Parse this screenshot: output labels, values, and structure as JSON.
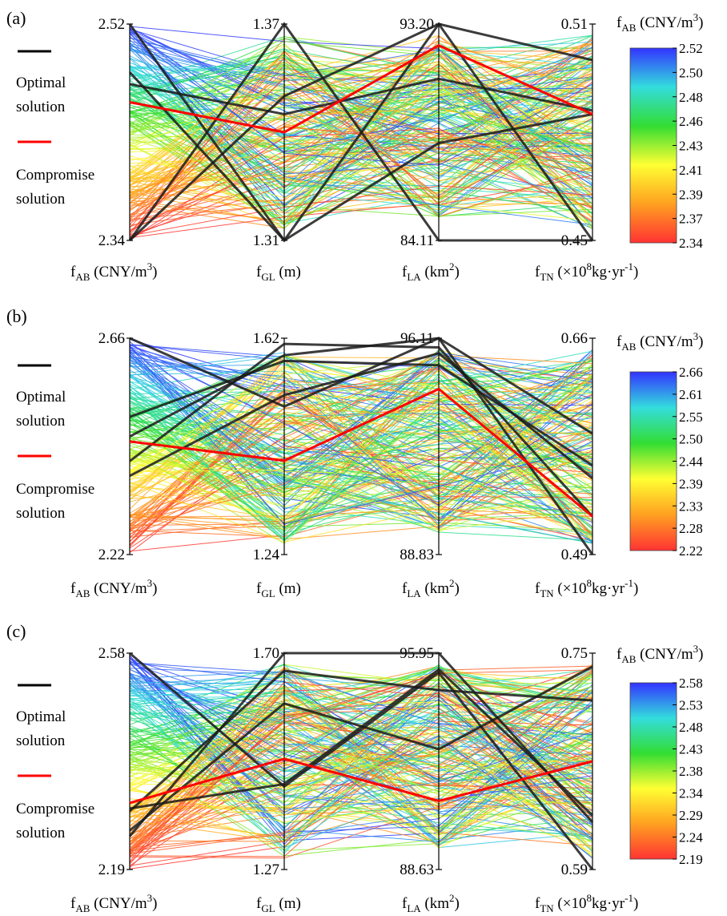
{
  "legend": {
    "optimal_label_1": "Optimal",
    "optimal_label_2": "solution",
    "optimal_color": "#000000",
    "compromise_label_1": "Compromise",
    "compromise_label_2": "solution",
    "compromise_color": "#ff0000"
  },
  "colorbar_title": {
    "main": "f",
    "sub": "AB",
    "unit": " (CNY/m",
    "sup": "3",
    "close": ")"
  },
  "colormap": [
    "#ff3333",
    "#ffa020",
    "#ffff33",
    "#33dd33",
    "#33dddd",
    "#3333ff"
  ],
  "axis_labels": [
    {
      "main": "f",
      "sub": "AB",
      "rest": " (CNY/m",
      "sup": "3",
      "end": ")"
    },
    {
      "main": "f",
      "sub": "GL",
      "rest": " (m)",
      "sup": "",
      "end": ""
    },
    {
      "main": "f",
      "sub": "LA",
      "rest": " (km",
      "sup": "2",
      "end": ")"
    },
    {
      "main": "f",
      "sub": "TN",
      "rest": " (×10",
      "sup": "8",
      "end": "kg·yr",
      "sup2": "-1",
      "end2": ")"
    }
  ],
  "chart_data": [
    {
      "type": "parallel-coordinates",
      "panel_label": "(a)",
      "axes": [
        {
          "name": "fAB",
          "max": "2.52",
          "min": "2.34"
        },
        {
          "name": "fGL",
          "max": "1.37",
          "min": "1.31"
        },
        {
          "name": "fLA",
          "max": "93.20",
          "min": "84.11"
        },
        {
          "name": "fTN",
          "max": "0.51",
          "min": "0.45"
        }
      ],
      "colorbar_ticks": [
        "2.52",
        "2.50",
        "2.48",
        "2.46",
        "2.43",
        "2.41",
        "2.39",
        "2.37",
        "2.34"
      ],
      "optimal_solutions": [
        [
          2.52,
          1.31,
          93.2,
          0.45
        ],
        [
          2.34,
          1.37,
          84.11,
          0.45
        ],
        [
          2.34,
          1.35,
          93.2,
          0.5
        ],
        [
          2.48,
          1.31,
          88.2,
          0.485
        ],
        [
          2.47,
          1.345,
          90.9,
          0.486
        ]
      ],
      "compromise_solution": [
        2.455,
        1.34,
        92.3,
        0.485
      ]
    },
    {
      "type": "parallel-coordinates",
      "panel_label": "(b)",
      "axes": [
        {
          "name": "fAB",
          "max": "2.66",
          "min": "2.22"
        },
        {
          "name": "fGL",
          "max": "1.62",
          "min": "1.24"
        },
        {
          "name": "fLA",
          "max": "96.11",
          "min": "88.83"
        },
        {
          "name": "fTN",
          "max": "0.66",
          "min": "0.49"
        }
      ],
      "colorbar_ticks": [
        "2.66",
        "2.61",
        "2.55",
        "2.50",
        "2.44",
        "2.39",
        "2.33",
        "2.28",
        "2.22"
      ],
      "optimal_solutions": [
        [
          2.66,
          1.5,
          96.11,
          0.49
        ],
        [
          2.41,
          1.61,
          95.8,
          0.52
        ],
        [
          2.46,
          1.59,
          96.11,
          0.585
        ],
        [
          2.5,
          1.58,
          95.2,
          0.56
        ],
        [
          2.38,
          1.52,
          95.6,
          0.55
        ]
      ],
      "compromise_solution": [
        2.45,
        1.405,
        94.4,
        0.52
      ]
    },
    {
      "type": "parallel-coordinates",
      "panel_label": "(c)",
      "axes": [
        {
          "name": "fAB",
          "max": "2.58",
          "min": "2.19"
        },
        {
          "name": "fGL",
          "max": "1.70",
          "min": "1.27"
        },
        {
          "name": "fLA",
          "max": "95.95",
          "min": "88.63"
        },
        {
          "name": "fTN",
          "max": "0.75",
          "min": "0.59"
        }
      ],
      "colorbar_ticks": [
        "2.58",
        "2.53",
        "2.48",
        "2.43",
        "2.38",
        "2.34",
        "2.29",
        "2.24",
        "2.19"
      ],
      "optimal_solutions": [
        [
          2.58,
          1.435,
          95.3,
          0.59
        ],
        [
          2.25,
          1.7,
          95.95,
          0.625
        ],
        [
          2.295,
          1.665,
          94.7,
          0.715
        ],
        [
          2.26,
          1.6,
          92.7,
          0.74
        ],
        [
          2.3,
          1.44,
          95.4,
          0.63
        ]
      ],
      "compromise_solution": [
        2.31,
        1.49,
        90.95,
        0.67
      ]
    }
  ]
}
